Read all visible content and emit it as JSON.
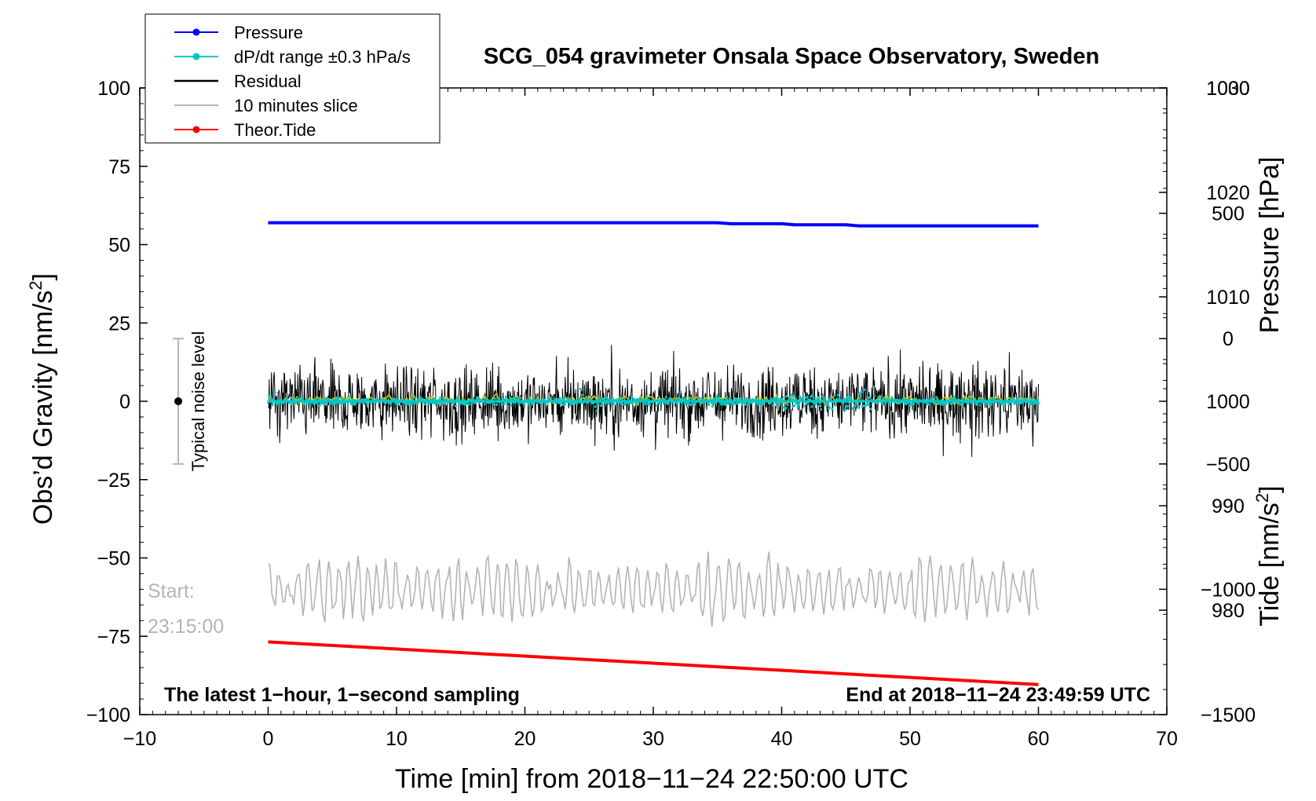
{
  "chart_data": {
    "type": "line",
    "title": "SCG_054 gravimeter Onsala Space Observatory, Sweden",
    "xlabel": "Time [min] from 2018−11−24 22:50:00 UTC",
    "ylabel_left": "Obs'd Gravity [nm/s2]",
    "ylabel_left_main": "Obs’d Gravity [nm/s",
    "ylabel_left_sup": "2",
    "ylabel_left_end": "]",
    "ylabel_pressure": "Pressure [hPa]",
    "ylabel_tide": "Tide [nm/s2]",
    "ylabel_tide_main": "Tide [nm/s",
    "ylabel_tide_sup": "2",
    "ylabel_tide_end": "]",
    "xlim": [
      -10,
      70
    ],
    "ylim_left": [
      -100,
      100
    ],
    "x_ticks": [
      -10,
      0,
      10,
      20,
      30,
      40,
      50,
      60,
      70
    ],
    "x_tick_labels": [
      "−10",
      "0",
      "10",
      "20",
      "30",
      "40",
      "50",
      "60",
      "70"
    ],
    "y_ticks_left": [
      100,
      75,
      50,
      25,
      0,
      -25,
      -50,
      -75,
      -100
    ],
    "y_tick_labels_left": [
      "100",
      "75",
      "50",
      "25",
      "0",
      "−25",
      "−50",
      "−75",
      "−100"
    ],
    "pressure_axis": {
      "ylim": [
        970,
        1030
      ],
      "ticks": [
        1030,
        1020,
        1010,
        1000,
        990,
        980
      ],
      "tick_labels": [
        "1030",
        "1020",
        "1010",
        "1000",
        "990",
        "980"
      ]
    },
    "tide_axis": {
      "ylim": [
        -1500,
        1000
      ],
      "ticks": [
        1000,
        500,
        0,
        -500,
        -1000,
        -1500
      ],
      "tick_labels": [
        "1000",
        "500",
        "0",
        "−500",
        "−1000",
        "−1500"
      ]
    },
    "legend": {
      "position": "top-left",
      "entries": [
        {
          "label": "Pressure",
          "color": "#0000ff",
          "marker": true
        },
        {
          "label": "dP/dt range ±0.3 hPa/s",
          "color": "#00c8c8",
          "marker": true
        },
        {
          "label": "Residual",
          "color": "#000000",
          "marker": false
        },
        {
          "label": "10 minutes slice",
          "color": "#b4b4b4",
          "marker": false
        },
        {
          "label": "Theor.Tide",
          "color": "#ff0000",
          "marker": true
        }
      ]
    },
    "series": [
      {
        "name": "Pressure",
        "axis": "pressure",
        "color": "#0000ff",
        "x": [
          0,
          35,
          36,
          40,
          41,
          45,
          46,
          60
        ],
        "y": [
          1017.1,
          1017.1,
          1017.0,
          1017.0,
          1016.9,
          1016.9,
          1016.8,
          1016.8
        ]
      },
      {
        "name": "dP/dt range ±0.3 hPa/s",
        "axis": "pressure",
        "color": "#00c8c8",
        "center": 1000.0,
        "typical_spread": 0.3,
        "max_spread": 2.5,
        "x_range": [
          0,
          60
        ]
      },
      {
        "name": "Residual",
        "axis": "gravity",
        "color": "#000000",
        "center": 0,
        "typical_amplitude": 10,
        "max_amplitude": 18,
        "x_range": [
          0,
          60
        ]
      },
      {
        "name": "Smoothed residual",
        "axis": "gravity",
        "color": "#c8c800",
        "center": 0.5,
        "amplitude": 1.2,
        "x_range": [
          0,
          60
        ]
      },
      {
        "name": "10 minutes slice",
        "axis": "gravity",
        "color": "#b4b4b4",
        "center": -60,
        "amplitude": 8,
        "max_amplitude": 12,
        "x_range": [
          0,
          60
        ]
      },
      {
        "name": "Theor.Tide",
        "axis": "tide",
        "color": "#ff0000",
        "x": [
          0,
          60
        ],
        "y": [
          -1210,
          -1380
        ]
      }
    ],
    "noise_indicator": {
      "label": "Typical noise level",
      "x": -7,
      "center": 0,
      "range": [
        -20,
        20
      ]
    },
    "annotations": {
      "start_label": "Start:",
      "start_time": "23:15:00",
      "bottom_left": "The latest 1−hour, 1−second sampling",
      "bottom_right": "End at 2018−11−24 23:49:59 UTC"
    }
  }
}
